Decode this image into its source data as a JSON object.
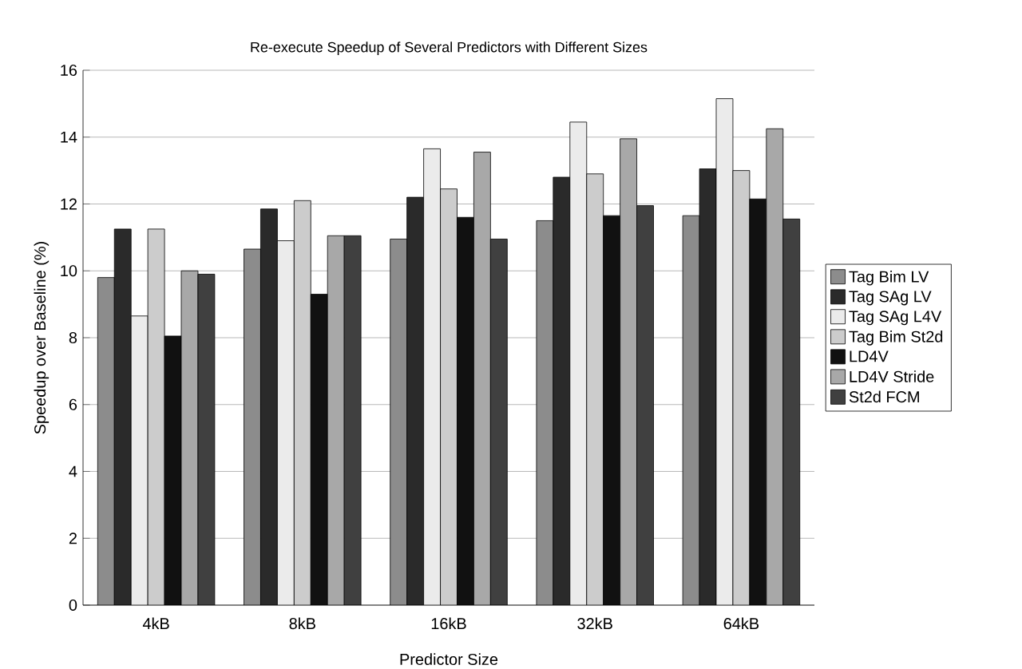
{
  "chart_data": {
    "type": "bar",
    "title": "Re-execute Speedup of Several Predictors with Different Sizes",
    "xlabel": "Predictor Size",
    "ylabel": "Speedup over Baseline (%)",
    "categories": [
      "4kB",
      "8kB",
      "16kB",
      "32kB",
      "64kB"
    ],
    "series": [
      {
        "name": "Tag Bim LV",
        "color": "#8c8c8c",
        "values": [
          9.8,
          10.65,
          10.95,
          11.5,
          11.65
        ]
      },
      {
        "name": "Tag SAg LV",
        "color": "#2a2a2a",
        "values": [
          11.25,
          11.85,
          12.2,
          12.8,
          13.05
        ]
      },
      {
        "name": "Tag SAg L4V",
        "color": "#ebebeb",
        "values": [
          8.65,
          10.9,
          13.65,
          14.45,
          15.15
        ]
      },
      {
        "name": "Tag Bim St2d",
        "color": "#cccccc",
        "values": [
          11.25,
          12.1,
          12.45,
          12.9,
          13.0
        ]
      },
      {
        "name": "LD4V",
        "color": "#111111",
        "values": [
          8.05,
          9.3,
          11.6,
          11.65,
          12.15
        ]
      },
      {
        "name": "LD4V Stride",
        "color": "#a8a8a8",
        "values": [
          10.0,
          11.05,
          13.55,
          13.95,
          14.25
        ]
      },
      {
        "name": "St2d FCM",
        "color": "#404040",
        "values": [
          9.9,
          11.05,
          10.95,
          11.95,
          11.55
        ]
      }
    ],
    "ylim": [
      0,
      16
    ],
    "yticks": [
      0,
      2,
      4,
      6,
      8,
      10,
      12,
      14,
      16
    ],
    "grid": "y",
    "legend": "right"
  }
}
